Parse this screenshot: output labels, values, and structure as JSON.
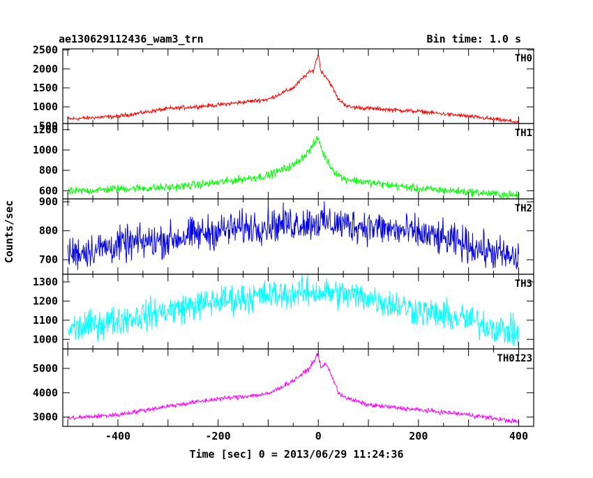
{
  "header": {
    "title": "ae130629112436_wam3_trn",
    "bin_time": "Bin time: 1.0 s"
  },
  "chart_data": {
    "type": "line",
    "title": "ae130629112436_wam3_trn",
    "xlabel": "Time [sec] 0 = 2013/06/29 11:24:36",
    "ylabel": "Counts/sec",
    "xlim": [
      -510,
      430
    ],
    "xticks": [
      -400,
      -200,
      0,
      200,
      400
    ],
    "grid": false,
    "panels": [
      {
        "name": "TH0",
        "color": "#ff0000",
        "ylim": [
          560,
          2530
        ],
        "yticks": [
          500,
          1000,
          1500,
          2000,
          2500
        ],
        "x": [
          -500,
          -400,
          -300,
          -200,
          -100,
          -50,
          -20,
          -10,
          0,
          5,
          15,
          25,
          40,
          60,
          100,
          200,
          300,
          400
        ],
        "y": [
          680,
          750,
          950,
          1050,
          1200,
          1500,
          1900,
          1950,
          2400,
          1950,
          1800,
          1600,
          1200,
          1000,
          960,
          880,
          750,
          600
        ],
        "noise": 40
      },
      {
        "name": "TH1",
        "color": "#00ff00",
        "ylim": [
          520,
          1260
        ],
        "yticks": [
          600,
          800,
          1000,
          1200
        ],
        "x": [
          -500,
          -400,
          -300,
          -200,
          -100,
          -50,
          -20,
          0,
          10,
          30,
          50,
          100,
          200,
          300,
          400
        ],
        "y": [
          590,
          620,
          630,
          680,
          750,
          850,
          980,
          1120,
          960,
          800,
          720,
          680,
          620,
          590,
          550
        ],
        "noise": 30
      },
      {
        "name": "TH2",
        "color": "#0000ee",
        "ylim": [
          650,
          910
        ],
        "yticks": [
          700,
          800,
          900
        ],
        "x": [
          -500,
          -400,
          -300,
          -200,
          -100,
          0,
          100,
          200,
          300,
          400
        ],
        "y": [
          720,
          750,
          770,
          800,
          820,
          830,
          815,
          790,
          750,
          700
        ],
        "noise": 45
      },
      {
        "name": "TH3",
        "color": "#00ffff",
        "ylim": [
          950,
          1340
        ],
        "yticks": [
          1000,
          1100,
          1200,
          1300
        ],
        "x": [
          -500,
          -400,
          -300,
          -200,
          -100,
          0,
          100,
          200,
          300,
          400
        ],
        "y": [
          1050,
          1100,
          1150,
          1200,
          1230,
          1250,
          1220,
          1150,
          1100,
          1030
        ],
        "noise": 60
      },
      {
        "name": "TH0123",
        "color": "#ff00ff",
        "ylim": [
          2620,
          5800
        ],
        "yticks": [
          3000,
          4000,
          5000
        ],
        "x": [
          -500,
          -400,
          -300,
          -200,
          -100,
          -50,
          -20,
          0,
          5,
          15,
          25,
          40,
          60,
          100,
          200,
          300,
          400
        ],
        "y": [
          2950,
          3100,
          3450,
          3750,
          3950,
          4500,
          4950,
          5600,
          5000,
          5200,
          4800,
          4000,
          3750,
          3500,
          3300,
          3100,
          2800
        ],
        "noise": 70
      }
    ]
  }
}
